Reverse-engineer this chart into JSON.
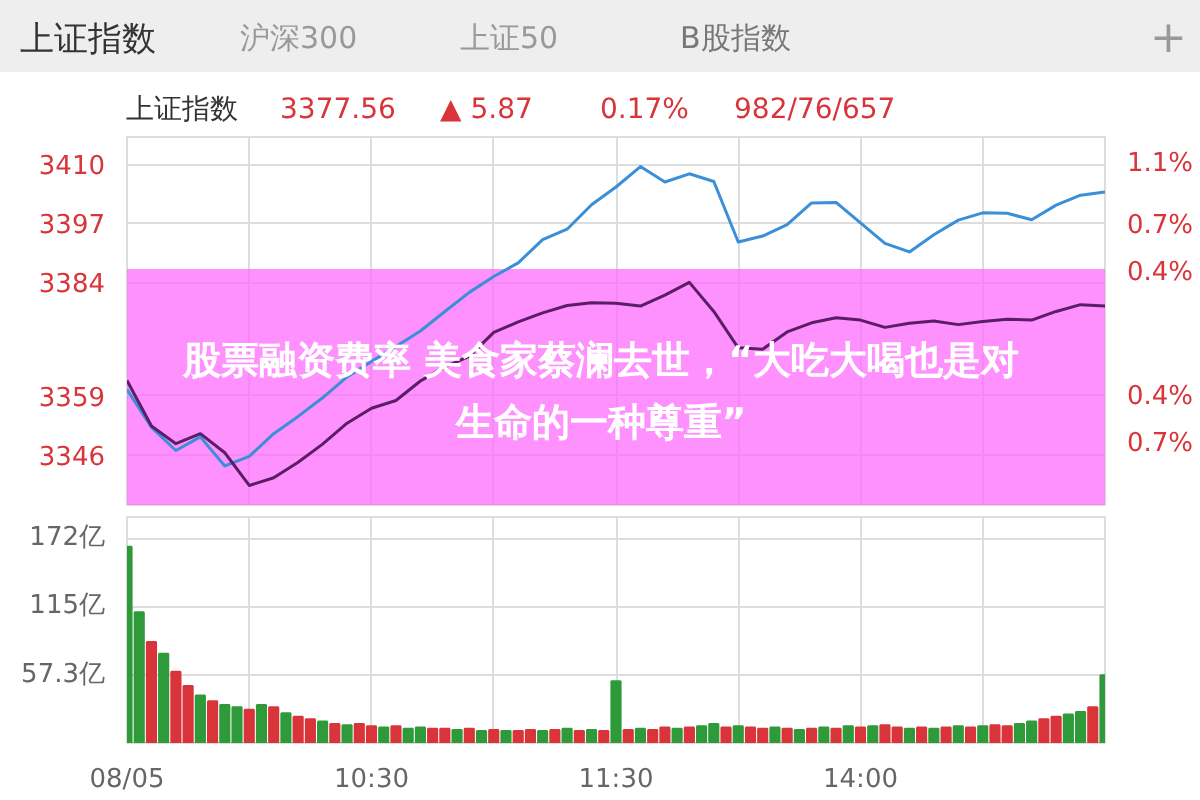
{
  "chart_data": [
    {
      "type": "other",
      "annotations": [
        "上证指数",
        "沪深300",
        "上证50",
        "B股指数",
        "+",
        "上证指数",
        "3377.56",
        "▲ 5.87",
        "0.17%",
        "982/76/657"
      ]
    },
    {
      "type": "line",
      "categories": [
        null,
        null,
        null,
        null,
        null,
        null,
        null,
        null,
        null,
        null,
        null,
        null,
        null,
        null,
        null,
        null,
        null,
        null,
        null,
        null,
        null,
        null,
        null,
        null,
        null,
        null,
        null,
        null,
        null,
        null,
        null,
        null,
        null,
        null,
        null,
        null,
        null,
        null,
        null,
        null,
        null
      ],
      "ylim": [
        3335,
        3416
      ],
      "yticks": [
        3346,
        3359,
        3384,
        3397,
        3410
      ],
      "y2lim": [
        -1.09,
        1.27
      ],
      "y2ticks": [
        {
          "value": -0.7,
          "label": "0.7%"
        },
        {
          "value": -0.4,
          "label": "0.4%"
        },
        {
          "value": 0.4,
          "label": "0.4%"
        },
        {
          "value": 0.7,
          "label": "0.7%"
        },
        {
          "value": 1.1,
          "label": "1.1%"
        }
      ],
      "tick_labels": "y",
      "grid": true,
      "annotations": [
        "股票融资费率 美食家蔡澜去世，“大吃大喝也是对生命的一种尊重”"
      ],
      "series": [
        {
          "color": "#3a8fd8",
          "values": [
            3360.4,
            3352.1,
            3347.0,
            3350.0,
            3343.6,
            3345.7,
            3350.7,
            3354.5,
            3358.6,
            3363.2,
            3366.6,
            3369.9,
            3373.3,
            3377.6,
            3381.8,
            3385.3,
            3388.3,
            3393.4,
            3395.7,
            3401.1,
            3405.0,
            3409.5,
            3406.1,
            3407.9,
            3406.2,
            3392.9,
            3394.2,
            3396.7,
            3401.5,
            3401.6,
            3397.1,
            3392.6,
            3390.7,
            3394.5,
            3397.7,
            3399.3,
            3399.2,
            3397.8,
            3401.0,
            3403.2,
            3403.9
          ]
        },
        {
          "color": "#5a1d66",
          "values": [
            3362.4,
            3352.4,
            3348.5,
            3350.7,
            3346.5,
            3339.3,
            3341.0,
            3344.4,
            3348.4,
            3353.0,
            3356.3,
            3358.0,
            3362.3,
            3365.4,
            3367.7,
            3373.0,
            3375.3,
            3377.3,
            3378.9,
            3379.5,
            3379.4,
            3378.8,
            3381.2,
            3384.0,
            3377.6,
            3369.6,
            3369.3,
            3373.1,
            3375.1,
            3376.2,
            3375.7,
            3374.1,
            3375.0,
            3375.5,
            3374.7,
            3375.4,
            3375.9,
            3375.7,
            3377.6,
            3379.1,
            3378.8
          ]
        }
      ]
    },
    {
      "type": "bar",
      "categories": [
        "08/05",
        null,
        null,
        null,
        null,
        null,
        null,
        null,
        null,
        null,
        null,
        null,
        null,
        null,
        null,
        null,
        null,
        null,
        null,
        null,
        "10:30",
        null,
        null,
        null,
        null,
        null,
        null,
        null,
        null,
        null,
        null,
        null,
        null,
        null,
        null,
        null,
        null,
        null,
        null,
        null,
        "11:30",
        null,
        null,
        null,
        null,
        null,
        null,
        null,
        null,
        null,
        null,
        null,
        null,
        null,
        null,
        null,
        null,
        null,
        null,
        null,
        "14:00",
        null,
        null,
        null,
        null,
        null,
        null,
        null,
        null,
        null,
        null,
        null,
        null,
        null,
        null,
        null,
        null,
        null,
        null,
        null,
        null
      ],
      "ylim": [
        0,
        190
      ],
      "yticks": [
        {
          "value": 57.3,
          "label": "57.3亿"
        },
        {
          "value": 115,
          "label": "115亿"
        },
        {
          "value": 172,
          "label": "172亿"
        }
      ],
      "grid": true,
      "values": [
        165,
        110,
        85,
        75,
        60,
        48,
        40,
        35,
        32,
        30,
        28,
        32,
        30,
        25,
        22,
        20,
        18,
        16,
        15,
        16,
        14,
        13,
        14,
        12,
        13,
        12,
        12,
        11,
        12,
        10,
        11,
        10,
        10,
        11,
        10,
        11,
        12,
        10,
        11,
        10,
        52,
        11,
        12,
        11,
        13,
        12,
        13,
        14,
        16,
        13,
        14,
        13,
        12,
        13,
        12,
        11,
        12,
        13,
        12,
        14,
        13,
        14,
        15,
        13,
        12,
        13,
        12,
        13,
        14,
        13,
        14,
        15,
        14,
        16,
        18,
        20,
        22,
        24,
        26,
        30,
        57
      ],
      "colors": [
        "#2e9a3a",
        "#2e9a3a",
        "#d9343a",
        "#2e9a3a",
        "#d9343a",
        "#d9343a",
        "#2e9a3a",
        "#d9343a",
        "#2e9a3a",
        "#2e9a3a",
        "#d9343a",
        "#2e9a3a",
        "#d9343a",
        "#2e9a3a",
        "#d9343a",
        "#d9343a",
        "#2e9a3a",
        "#d9343a",
        "#2e9a3a",
        "#d9343a",
        "#d9343a",
        "#2e9a3a",
        "#d9343a",
        "#2e9a3a",
        "#2e9a3a",
        "#d9343a",
        "#d9343a",
        "#2e9a3a",
        "#d9343a",
        "#2e9a3a",
        "#d9343a",
        "#2e9a3a",
        "#d9343a",
        "#d9343a",
        "#2e9a3a",
        "#d9343a",
        "#2e9a3a",
        "#d9343a",
        "#2e9a3a",
        "#d9343a",
        "#2e9a3a",
        "#d9343a",
        "#2e9a3a",
        "#d9343a",
        "#d9343a",
        "#2e9a3a",
        "#d9343a",
        "#2e9a3a",
        "#2e9a3a",
        "#d9343a",
        "#2e9a3a",
        "#d9343a",
        "#d9343a",
        "#2e9a3a",
        "#d9343a",
        "#2e9a3a",
        "#d9343a",
        "#2e9a3a",
        "#d9343a",
        "#2e9a3a",
        "#d9343a",
        "#2e9a3a",
        "#d9343a",
        "#d9343a",
        "#2e9a3a",
        "#d9343a",
        "#2e9a3a",
        "#d9343a",
        "#2e9a3a",
        "#d9343a",
        "#2e9a3a",
        "#d9343a",
        "#d9343a",
        "#2e9a3a",
        "#2e9a3a",
        "#d9343a",
        "#d9343a",
        "#2e9a3a",
        "#2e9a3a",
        "#d9343a",
        "#2e9a3a"
      ]
    }
  ]
}
